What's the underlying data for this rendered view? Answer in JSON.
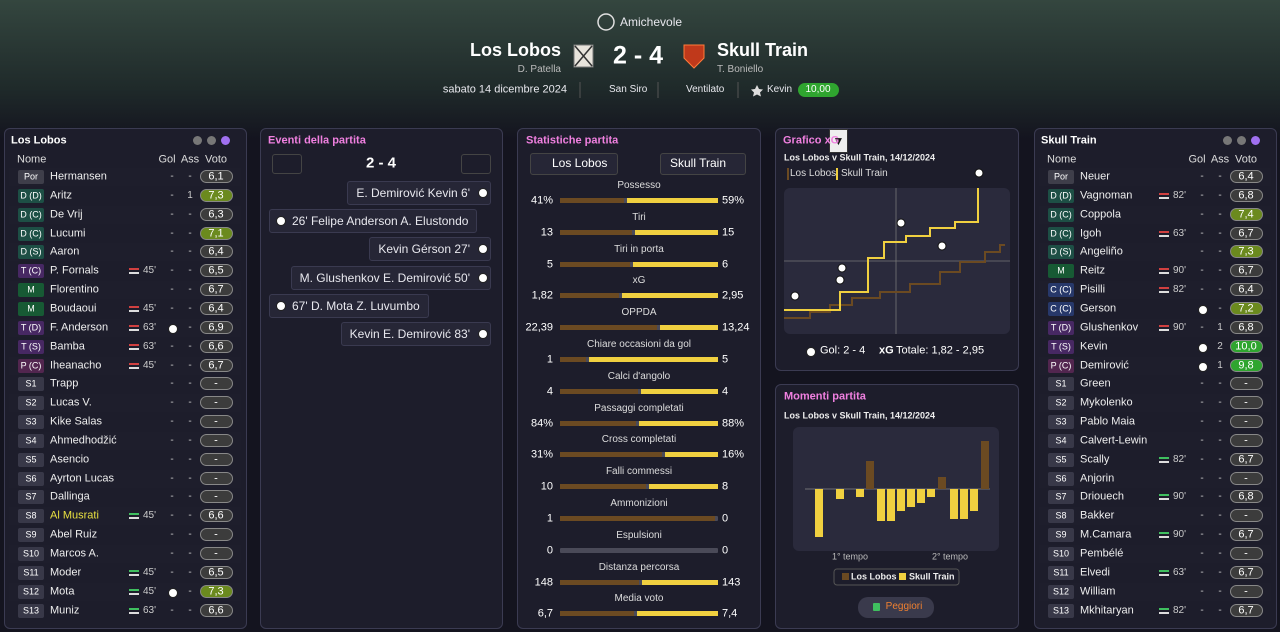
{
  "header": {
    "competition": "Amichevole",
    "home": {
      "name": "Los Lobos",
      "manager": "D. Patella"
    },
    "score": "2 - 4",
    "away": {
      "name": "Skull Train",
      "manager": "T. Boniello"
    },
    "date": "sabato 14 dicembre 2024",
    "stadium": "San Siro",
    "weather": "Ventilato",
    "player_of_match": "Kevin",
    "player_of_match_rating": "10,00"
  },
  "lineups": [
    {
      "title": "Los Lobos",
      "columns": [
        "Nome",
        "Gol",
        "Ass",
        "Voto"
      ],
      "players": [
        {
          "pos": "Por",
          "name": "Hermansen",
          "gol": "-",
          "ass": "-",
          "rating": "6,1"
        },
        {
          "pos": "D (D)",
          "name": "Aritz",
          "gol": "-",
          "ass": "1",
          "rating": "7,3",
          "tone": "good"
        },
        {
          "pos": "D (C)",
          "name": "De Vrij",
          "gol": "-",
          "ass": "-",
          "rating": "6,3"
        },
        {
          "pos": "D (C)",
          "name": "Lucumi",
          "gol": "-",
          "ass": "-",
          "rating": "7,1",
          "tone": "good"
        },
        {
          "pos": "D (S)",
          "name": "Aaron",
          "gol": "-",
          "ass": "-",
          "rating": "6,4"
        },
        {
          "pos": "T (C)",
          "name": "P. Fornals",
          "sub": "45'",
          "sub_dir": "off",
          "gol": "-",
          "ass": "-",
          "rating": "6,5"
        },
        {
          "pos": "M",
          "name": "Florentino",
          "gol": "-",
          "ass": "-",
          "rating": "6,7"
        },
        {
          "pos": "M",
          "name": "Boudaoui",
          "sub": "45'",
          "sub_dir": "off",
          "gol": "-",
          "ass": "-",
          "rating": "6,4"
        },
        {
          "pos": "T (D)",
          "name": "F. Anderson",
          "sub": "63'",
          "sub_dir": "off",
          "goal": true,
          "ass": "-",
          "rating": "6,9"
        },
        {
          "pos": "T (S)",
          "name": "Bamba",
          "sub": "63'",
          "sub_dir": "off",
          "gol": "-",
          "ass": "-",
          "rating": "6,6"
        },
        {
          "pos": "P (C)",
          "name": "Iheanacho",
          "sub": "45'",
          "sub_dir": "off",
          "gol": "-",
          "ass": "-",
          "rating": "6,7"
        },
        {
          "pos": "S1",
          "name": "Trapp",
          "gol": "-",
          "ass": "-",
          "rating": "-"
        },
        {
          "pos": "S2",
          "name": "Lucas V.",
          "gol": "-",
          "ass": "-",
          "rating": "-"
        },
        {
          "pos": "S3",
          "name": "Kike Salas",
          "gol": "-",
          "ass": "-",
          "rating": "-"
        },
        {
          "pos": "S4",
          "name": "Ahmedhodžić",
          "gol": "-",
          "ass": "-",
          "rating": "-"
        },
        {
          "pos": "S5",
          "name": "Asencio",
          "gol": "-",
          "ass": "-",
          "rating": "-"
        },
        {
          "pos": "S6",
          "name": "Ayrton Lucas",
          "gol": "-",
          "ass": "-",
          "rating": "-"
        },
        {
          "pos": "S7",
          "name": "Dallinga",
          "gol": "-",
          "ass": "-",
          "rating": "-"
        },
        {
          "pos": "S8",
          "name": "Al Musrati",
          "name_tone": "highlight",
          "sub": "45'",
          "sub_dir": "on",
          "gol": "-",
          "ass": "-",
          "rating": "6,6"
        },
        {
          "pos": "S9",
          "name": "Abel Ruiz",
          "gol": "-",
          "ass": "-",
          "rating": "-"
        },
        {
          "pos": "S10",
          "name": "Marcos A.",
          "gol": "-",
          "ass": "-",
          "rating": "-"
        },
        {
          "pos": "S11",
          "name": "Moder",
          "sub": "45'",
          "sub_dir": "on",
          "gol": "-",
          "ass": "-",
          "rating": "6,5"
        },
        {
          "pos": "S12",
          "name": "Mota",
          "sub": "45'",
          "sub_dir": "on",
          "goal": true,
          "ass": "-",
          "rating": "7,3",
          "tone": "good"
        },
        {
          "pos": "S13",
          "name": "Muniz",
          "sub": "63'",
          "sub_dir": "on",
          "gol": "-",
          "ass": "-",
          "rating": "6,6"
        }
      ]
    },
    {
      "title": "Skull Train",
      "columns": [
        "Nome",
        "Gol",
        "Ass",
        "Voto"
      ],
      "players": [
        {
          "pos": "Por",
          "name": "Neuer",
          "gol": "-",
          "ass": "-",
          "rating": "6,4"
        },
        {
          "pos": "D (D)",
          "name": "Vagnoman",
          "sub": "82'",
          "sub_dir": "off",
          "gol": "-",
          "ass": "-",
          "rating": "6,8"
        },
        {
          "pos": "D (C)",
          "name": "Coppola",
          "gol": "-",
          "ass": "-",
          "rating": "7,4",
          "tone": "good"
        },
        {
          "pos": "D (C)",
          "name": "Igoh",
          "sub": "63'",
          "sub_dir": "off",
          "gol": "-",
          "ass": "-",
          "rating": "6,7"
        },
        {
          "pos": "D (S)",
          "name": "Angeliño",
          "gol": "-",
          "ass": "-",
          "rating": "7,3",
          "tone": "good"
        },
        {
          "pos": "M",
          "name": "Reitz",
          "sub": "90'",
          "sub_dir": "off",
          "gol": "-",
          "ass": "-",
          "rating": "6,7"
        },
        {
          "pos": "C (C)",
          "name": "Pisilli",
          "sub": "82'",
          "sub_dir": "off",
          "gol": "-",
          "ass": "-",
          "rating": "6,4"
        },
        {
          "pos": "C (C)",
          "name": "Gerson",
          "goal": true,
          "ass": "-",
          "rating": "7,2",
          "tone": "good"
        },
        {
          "pos": "T (D)",
          "name": "Glushenkov",
          "sub": "90'",
          "sub_dir": "off",
          "gol": "-",
          "ass": "1",
          "rating": "6,8"
        },
        {
          "pos": "T (S)",
          "name": "Kevin",
          "goal": true,
          "ass": "2",
          "rating": "10,0",
          "tone": "top"
        },
        {
          "pos": "P (C)",
          "name": "Demirović",
          "goal": true,
          "ass": "1",
          "rating": "9,8",
          "tone": "top"
        },
        {
          "pos": "S1",
          "name": "Green",
          "gol": "-",
          "ass": "-",
          "rating": "-"
        },
        {
          "pos": "S2",
          "name": "Mykolenko",
          "gol": "-",
          "ass": "-",
          "rating": "-"
        },
        {
          "pos": "S3",
          "name": "Pablo Maia",
          "gol": "-",
          "ass": "-",
          "rating": "-"
        },
        {
          "pos": "S4",
          "name": "Calvert-Lewin",
          "gol": "-",
          "ass": "-",
          "rating": "-"
        },
        {
          "pos": "S5",
          "name": "Scally",
          "sub": "82'",
          "sub_dir": "on",
          "gol": "-",
          "ass": "-",
          "rating": "6,7"
        },
        {
          "pos": "S6",
          "name": "Anjorin",
          "gol": "-",
          "ass": "-",
          "rating": "-"
        },
        {
          "pos": "S7",
          "name": "Driouech",
          "sub": "90'",
          "sub_dir": "on",
          "gol": "-",
          "ass": "-",
          "rating": "6,8"
        },
        {
          "pos": "S8",
          "name": "Bakker",
          "gol": "-",
          "ass": "-",
          "rating": "-"
        },
        {
          "pos": "S9",
          "name": "M.Camara",
          "sub": "90'",
          "sub_dir": "on",
          "gol": "-",
          "ass": "-",
          "rating": "6,7"
        },
        {
          "pos": "S10",
          "name": "Pembélé",
          "gol": "-",
          "ass": "-",
          "rating": "-"
        },
        {
          "pos": "S11",
          "name": "Elvedi",
          "sub": "63'",
          "sub_dir": "on",
          "gol": "-",
          "ass": "-",
          "rating": "6,7"
        },
        {
          "pos": "S12",
          "name": "William",
          "gol": "-",
          "ass": "-",
          "rating": "-"
        },
        {
          "pos": "S13",
          "name": "Mkhitaryan",
          "sub": "82'",
          "sub_dir": "on",
          "gol": "-",
          "ass": "-",
          "rating": "6,7"
        }
      ]
    }
  ],
  "events": {
    "title": "Eventi della partita",
    "score": "2 - 4",
    "items": [
      {
        "side": "away",
        "text": "E. Demirović  Kevin 6'"
      },
      {
        "side": "home",
        "text": "26' Felipe Anderson  A. Elustondo"
      },
      {
        "side": "away",
        "text": "Kevin  Gérson 27'"
      },
      {
        "side": "away",
        "text": "M. Glushenkov  E. Demirović 50'"
      },
      {
        "side": "home",
        "text": "67' D. Mota  Z. Luvumbo"
      },
      {
        "side": "away",
        "text": "Kevin  E. Demirović 83'"
      }
    ]
  },
  "stats": {
    "title": "Statistiche partita",
    "home": "Los Lobos",
    "away": "Skull Train",
    "rows": [
      {
        "label": "Possesso",
        "home": 41,
        "away": 59,
        "home_label": "41%",
        "away_label": "59%"
      },
      {
        "label": "Tiri",
        "home": 13,
        "away": 15
      },
      {
        "label": "Tiri in porta",
        "home": 5,
        "away": 6
      },
      {
        "label": "xG",
        "home": 1.82,
        "away": 2.95,
        "home_label": "1,82",
        "away_label": "2,95"
      },
      {
        "label": "OPPDA",
        "home": 22.39,
        "away": 13.24,
        "home_label": "22,39",
        "away_label": "13,24"
      },
      {
        "label": "Chiare occasioni da gol",
        "home": 1,
        "away": 5
      },
      {
        "label": "Calci d'angolo",
        "home": 4,
        "away": 4
      },
      {
        "label": "Passaggi completati",
        "home": 84,
        "away": 88,
        "home_label": "84%",
        "away_label": "88%"
      },
      {
        "label": "Cross completati",
        "home": 31,
        "away": 16,
        "home_label": "31%",
        "away_label": "16%"
      },
      {
        "label": "Falli commessi",
        "home": 10,
        "away": 8
      },
      {
        "label": "Ammonizioni",
        "home": 1,
        "away": 0
      },
      {
        "label": "Espulsioni",
        "home": 0,
        "away": 0
      },
      {
        "label": "Distanza percorsa",
        "home": 148,
        "away": 143
      },
      {
        "label": "Media voto",
        "home": 6.7,
        "away": 7.4,
        "home_label": "6,7",
        "away_label": "7,4"
      }
    ]
  },
  "xg": {
    "title": "Grafico xG",
    "subtitle": "Los Lobos v Skull Train, 14/12/2024",
    "legend": [
      "Los Lobos",
      "Skull Train"
    ],
    "goals_label": "Gol: 2 - 4",
    "xg_label": "xG",
    "total_label": "Totale: 1,82 - 2,95"
  },
  "moments": {
    "title": "Momenti partita",
    "subtitle": "Los Lobos v Skull Train, 14/12/2024",
    "halves": [
      "1° tempo",
      "2° tempo"
    ],
    "legend": [
      "Los Lobos",
      "Skull Train"
    ],
    "button": "Peggiori"
  }
}
